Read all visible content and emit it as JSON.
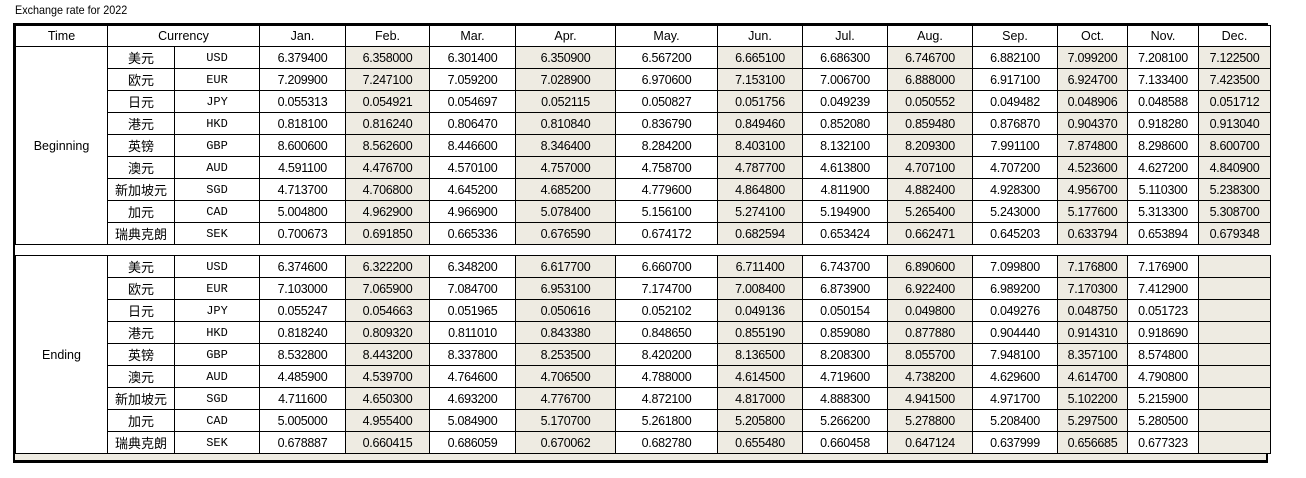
{
  "title": "Exchange rate for 2022",
  "headers": {
    "time": "Time",
    "currency": "Currency",
    "months": [
      "Jan.",
      "Feb.",
      "Mar.",
      "Apr.",
      "May.",
      "Jun.",
      "Jul.",
      "Aug.",
      "Sep.",
      "Oct.",
      "Nov.",
      "Dec."
    ]
  },
  "colors": {
    "shaded": "#eeebe2"
  },
  "currencies": [
    {
      "cn": "美元",
      "code": "USD"
    },
    {
      "cn": "欧元",
      "code": "EUR"
    },
    {
      "cn": "日元",
      "code": "JPY"
    },
    {
      "cn": "港元",
      "code": "HKD"
    },
    {
      "cn": "英镑",
      "code": "GBP"
    },
    {
      "cn": "澳元",
      "code": "AUD"
    },
    {
      "cn": "新加坡元",
      "code": "SGD"
    },
    {
      "cn": "加元",
      "code": "CAD"
    },
    {
      "cn": "瑞典克朗",
      "code": "SEK"
    }
  ],
  "sections": [
    {
      "label": "Beginning",
      "rows": [
        [
          "6.379400",
          "6.358000",
          "6.301400",
          "6.350900",
          "6.567200",
          "6.665100",
          "6.686300",
          "6.746700",
          "6.882100",
          "7.099200",
          "7.208100",
          "7.122500"
        ],
        [
          "7.209900",
          "7.247100",
          "7.059200",
          "7.028900",
          "6.970600",
          "7.153100",
          "7.006700",
          "6.888000",
          "6.917100",
          "6.924700",
          "7.133400",
          "7.423500"
        ],
        [
          "0.055313",
          "0.054921",
          "0.054697",
          "0.052115",
          "0.050827",
          "0.051756",
          "0.049239",
          "0.050552",
          "0.049482",
          "0.048906",
          "0.048588",
          "0.051712"
        ],
        [
          "0.818100",
          "0.816240",
          "0.806470",
          "0.810840",
          "0.836790",
          "0.849460",
          "0.852080",
          "0.859480",
          "0.876870",
          "0.904370",
          "0.918280",
          "0.913040"
        ],
        [
          "8.600600",
          "8.562600",
          "8.446600",
          "8.346400",
          "8.284200",
          "8.403100",
          "8.132100",
          "8.209300",
          "7.991100",
          "7.874800",
          "8.298600",
          "8.600700"
        ],
        [
          "4.591100",
          "4.476700",
          "4.570100",
          "4.757000",
          "4.758700",
          "4.787700",
          "4.613800",
          "4.707100",
          "4.707200",
          "4.523600",
          "4.627200",
          "4.840900"
        ],
        [
          "4.713700",
          "4.706800",
          "4.645200",
          "4.685200",
          "4.779600",
          "4.864800",
          "4.811900",
          "4.882400",
          "4.928300",
          "4.956700",
          "5.110300",
          "5.238300"
        ],
        [
          "5.004800",
          "4.962900",
          "4.966900",
          "5.078400",
          "5.156100",
          "5.274100",
          "5.194900",
          "5.265400",
          "5.243000",
          "5.177600",
          "5.313300",
          "5.308700"
        ],
        [
          "0.700673",
          "0.691850",
          "0.665336",
          "0.676590",
          "0.674172",
          "0.682594",
          "0.653424",
          "0.662471",
          "0.645203",
          "0.633794",
          "0.653894",
          "0.679348"
        ]
      ]
    },
    {
      "label": "Ending",
      "rows": [
        [
          "6.374600",
          "6.322200",
          "6.348200",
          "6.617700",
          "6.660700",
          "6.711400",
          "6.743700",
          "6.890600",
          "7.099800",
          "7.176800",
          "7.176900",
          ""
        ],
        [
          "7.103000",
          "7.065900",
          "7.084700",
          "6.953100",
          "7.174700",
          "7.008400",
          "6.873900",
          "6.922400",
          "6.989200",
          "7.170300",
          "7.412900",
          ""
        ],
        [
          "0.055247",
          "0.054663",
          "0.051965",
          "0.050616",
          "0.052102",
          "0.049136",
          "0.050154",
          "0.049800",
          "0.049276",
          "0.048750",
          "0.051723",
          ""
        ],
        [
          "0.818240",
          "0.809320",
          "0.811010",
          "0.843380",
          "0.848650",
          "0.855190",
          "0.859080",
          "0.877880",
          "0.904440",
          "0.914310",
          "0.918690",
          ""
        ],
        [
          "8.532800",
          "8.443200",
          "8.337800",
          "8.253500",
          "8.420200",
          "8.136500",
          "8.208300",
          "8.055700",
          "7.948100",
          "8.357100",
          "8.574800",
          ""
        ],
        [
          "4.485900",
          "4.539700",
          "4.764600",
          "4.706500",
          "4.788000",
          "4.614500",
          "4.719600",
          "4.738200",
          "4.629600",
          "4.614700",
          "4.790800",
          ""
        ],
        [
          "4.711600",
          "4.650300",
          "4.693200",
          "4.776700",
          "4.872100",
          "4.817000",
          "4.888300",
          "4.941500",
          "4.971700",
          "5.102200",
          "5.215900",
          ""
        ],
        [
          "5.005000",
          "4.955400",
          "5.084900",
          "5.170700",
          "5.261800",
          "5.205800",
          "5.266200",
          "5.278800",
          "5.208400",
          "5.297500",
          "5.280500",
          ""
        ],
        [
          "0.678887",
          "0.660415",
          "0.686059",
          "0.670062",
          "0.682780",
          "0.655480",
          "0.660458",
          "0.647124",
          "0.637999",
          "0.656685",
          "0.677323",
          ""
        ]
      ]
    }
  ]
}
